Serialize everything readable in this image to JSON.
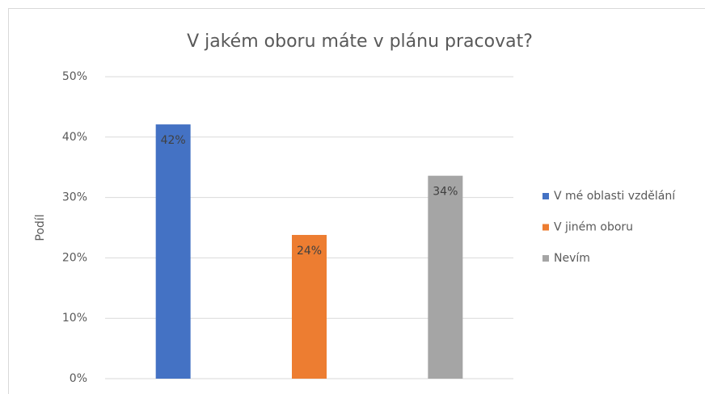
{
  "chart_data": {
    "type": "bar",
    "title": "V jakém oboru máte v plánu pracovat?",
    "y_label": "Podíl",
    "categories": [
      null,
      null,
      null
    ],
    "series": [
      {
        "name": "V mé oblasti vzdělání",
        "color": "#4472c4",
        "values": [
          42.1,
          null,
          null
        ],
        "value_labels": [
          "42%",
          null,
          null
        ]
      },
      {
        "name": "V jiném oboru",
        "color": "#ed7d31",
        "values": [
          null,
          23.8,
          null
        ],
        "value_labels": [
          null,
          "24%",
          null
        ]
      },
      {
        "name": "Nevím",
        "color": "#a5a5a5",
        "values": [
          null,
          null,
          33.6
        ],
        "value_labels": [
          null,
          null,
          "34%"
        ]
      }
    ],
    "ylim": [
      0,
      50
    ],
    "yticks": [
      {
        "value": 0,
        "label": "0%"
      },
      {
        "value": 10,
        "label": "10%"
      },
      {
        "value": 20,
        "label": "20%"
      },
      {
        "value": 30,
        "label": "30%"
      },
      {
        "value": 40,
        "label": "40%"
      },
      {
        "value": 50,
        "label": "50%"
      }
    ],
    "grid": true,
    "legend": "right"
  }
}
